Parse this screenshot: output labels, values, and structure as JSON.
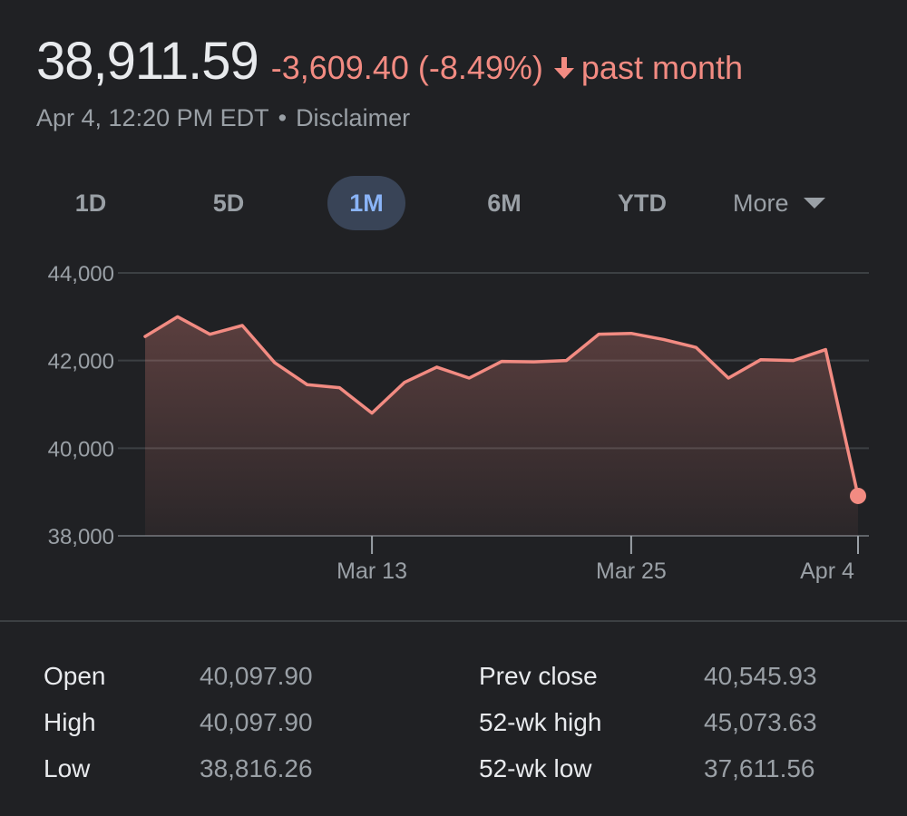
{
  "quote": {
    "price": "38,911.59",
    "change": "-3,609.40 (-8.49%)",
    "period": "past month",
    "timestamp": "Apr 4, 12:20 PM EDT",
    "separator": "•",
    "disclaimer": "Disclaimer"
  },
  "tabs": [
    {
      "label": "1D",
      "active": false
    },
    {
      "label": "5D",
      "active": false
    },
    {
      "label": "1M",
      "active": true
    },
    {
      "label": "6M",
      "active": false
    },
    {
      "label": "YTD",
      "active": false
    },
    {
      "label": "More",
      "active": false
    }
  ],
  "colors": {
    "line": "#f28b82",
    "active_tab_bg": "#394457",
    "active_tab_text": "#8ab4f8",
    "background": "#202124"
  },
  "chart_data": {
    "type": "area",
    "x_ticks": [
      "Mar 13",
      "Mar 25",
      "Apr 4"
    ],
    "y_ticks": [
      "44,000",
      "42,000",
      "40,000",
      "38,000"
    ],
    "y_tick_values": [
      44000,
      42000,
      40000,
      38000
    ],
    "ylim": [
      38000,
      44000
    ],
    "grid": true,
    "series": [
      {
        "values": [
          42550,
          43000,
          42600,
          42800,
          41950,
          41450,
          41380,
          40800,
          41500,
          41850,
          41600,
          41980,
          41970,
          42000,
          42600,
          42620,
          42480,
          42300,
          41600,
          42020,
          42000,
          42250,
          38911.59
        ],
        "tick_index": {
          "Mar 13": 7,
          "Mar 25": 15,
          "Apr 4": 22
        }
      }
    ]
  },
  "stats": {
    "left": [
      {
        "label": "Open",
        "value": "40,097.90"
      },
      {
        "label": "High",
        "value": "40,097.90"
      },
      {
        "label": "Low",
        "value": "38,816.26"
      }
    ],
    "right": [
      {
        "label": "Prev close",
        "value": "40,545.93"
      },
      {
        "label": "52-wk high",
        "value": "45,073.63"
      },
      {
        "label": "52-wk low",
        "value": "37,611.56"
      }
    ]
  }
}
